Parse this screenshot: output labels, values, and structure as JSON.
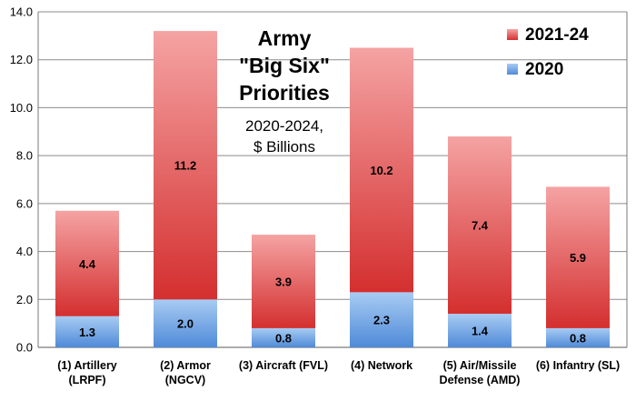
{
  "chart_data": {
    "type": "bar",
    "stacked": true,
    "title_lines": [
      "Army",
      "\"Big Six\"",
      "Priorities"
    ],
    "subtitle_lines": [
      "2020-2024,",
      "$ Billions"
    ],
    "categories": [
      [
        "(1) Artillery",
        "(LRPF)"
      ],
      [
        "(2) Armor",
        "(NGCV)"
      ],
      [
        "(3) Aircraft (FVL)"
      ],
      [
        "(4) Network"
      ],
      [
        "(5) Air/Missile",
        "Defense (AMD)"
      ],
      [
        "(6) Infantry (SL)"
      ]
    ],
    "series": [
      {
        "name": "2020",
        "color": "#5b95dc",
        "values": [
          1.3,
          2.0,
          0.8,
          2.3,
          1.4,
          0.8
        ],
        "labels": [
          "1.3",
          "2.0",
          "0.8",
          "2.3",
          "1.4",
          "0.8"
        ]
      },
      {
        "name": "2021-24",
        "color": "#d63535",
        "values": [
          4.4,
          11.2,
          3.9,
          10.2,
          7.4,
          5.9
        ],
        "labels": [
          "4.4",
          "11.2",
          "3.9",
          "10.2",
          "7.4",
          "5.9"
        ]
      }
    ],
    "legend_order": [
      "2021-24",
      "2020"
    ],
    "legend_position": "top-right",
    "ylim": [
      0,
      14
    ],
    "yticks": [
      "0.0",
      "2.0",
      "4.0",
      "6.0",
      "8.0",
      "10.0",
      "12.0",
      "14.0"
    ],
    "grid": true
  }
}
